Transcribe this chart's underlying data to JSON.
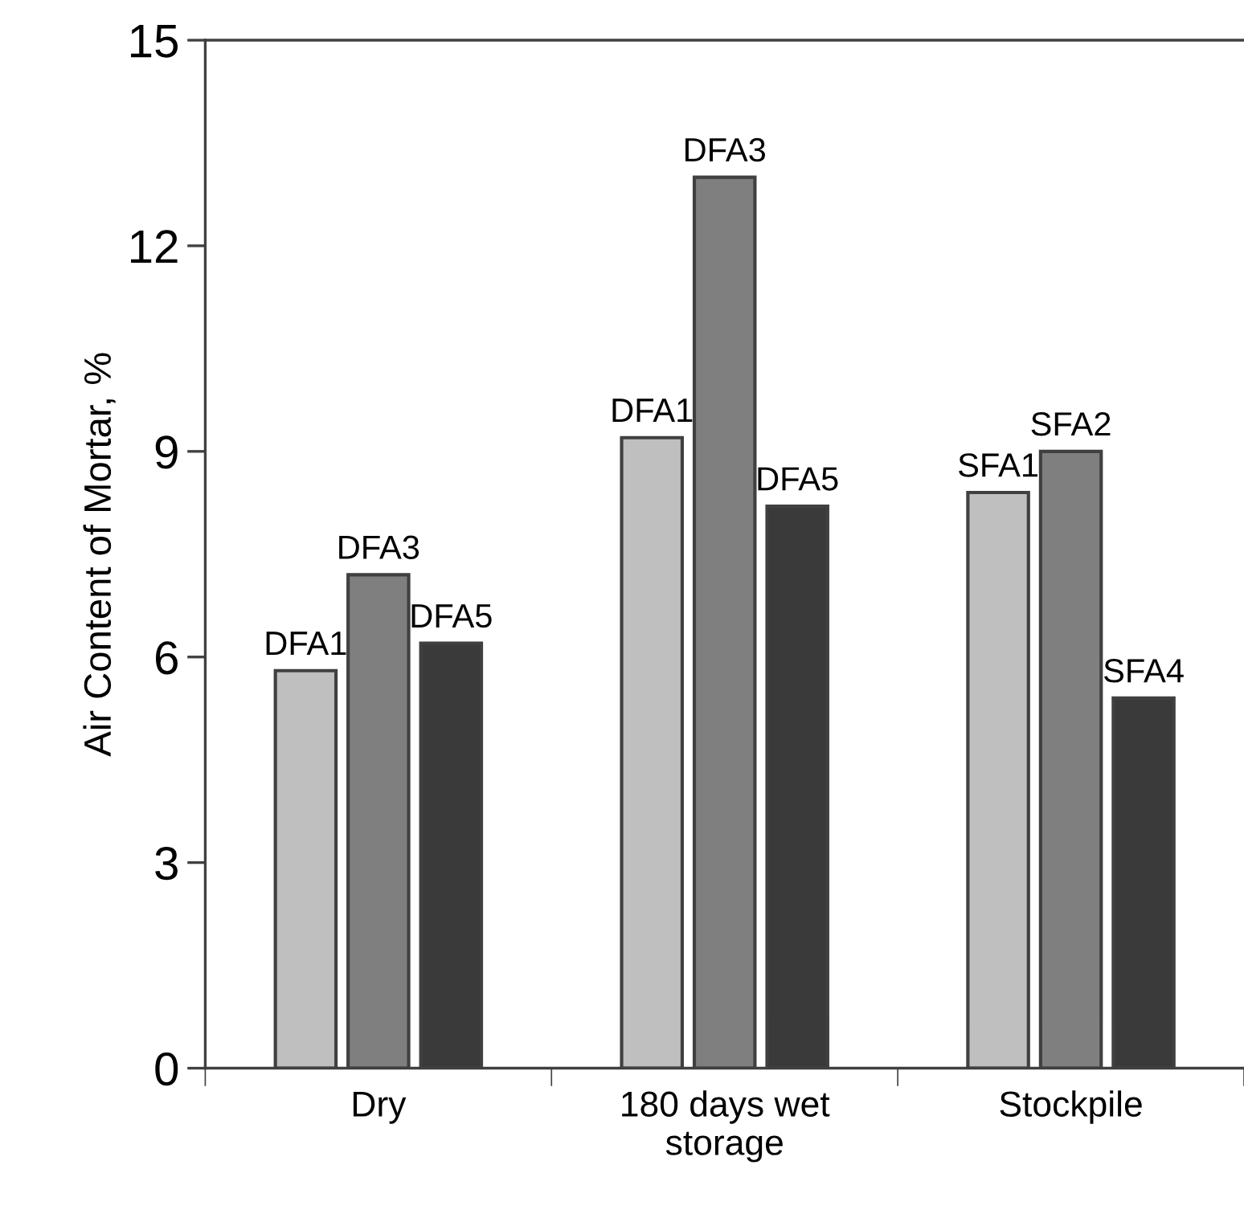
{
  "chart_data": {
    "type": "bar",
    "ylabel": "Air Content of Mortar, %",
    "categories": [
      "Dry",
      "180 days wet\nstorage",
      "Stockpile"
    ],
    "series": [
      {
        "color": "#bfbfbf",
        "values": [
          5.8,
          9.2,
          8.4
        ],
        "value_labels": [
          "DFA1",
          "DFA1",
          "SFA1"
        ]
      },
      {
        "color": "#7f7f7f",
        "values": [
          7.2,
          13.0,
          9.0
        ],
        "value_labels": [
          "DFA3",
          "DFA3",
          "SFA2"
        ]
      },
      {
        "color": "#3a3a3a",
        "values": [
          6.2,
          8.2,
          5.4
        ],
        "value_labels": [
          "DFA5",
          "DFA5",
          "SFA4"
        ]
      }
    ],
    "ylim": [
      0,
      15
    ],
    "yticks": [
      0,
      3,
      6,
      9,
      12,
      15
    ],
    "grid": false,
    "legend": false
  }
}
